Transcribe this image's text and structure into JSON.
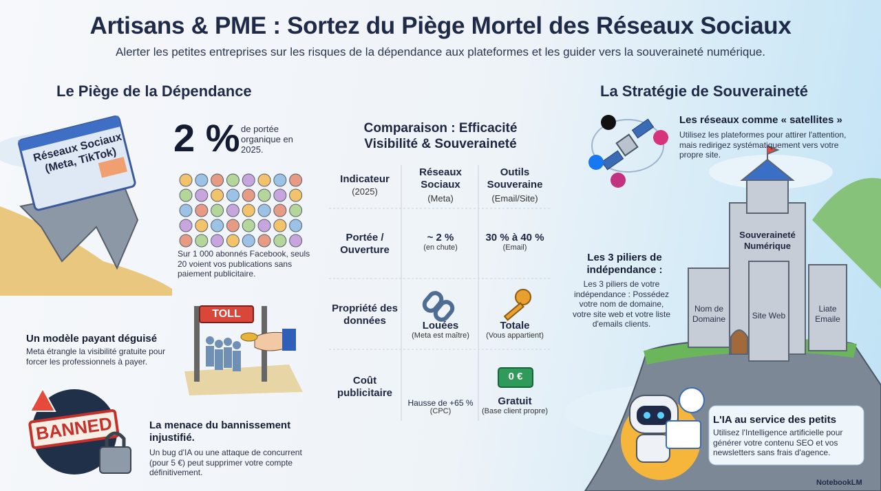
{
  "header": {
    "title": "Artisans & PME : Sortez du Piège Mortel des Réseaux Sociaux",
    "subtitle": "Alerter les petites entreprises sur les risques de la dépendance aux plateformes et les guider vers la souveraineté numérique."
  },
  "left": {
    "heading": "Le Piège de la Dépendance",
    "illustration_label": "Réseaux Sociaux (Meta, TikTok)",
    "stat": {
      "value": "2 %",
      "label": "de portée organique en 2025.",
      "caption": "Sur 1 000 abonnés Facebook, seuls 20 voient vos publications sans paiement publicitaire."
    },
    "toll_sign": "TOLL",
    "paid_model": {
      "title": "Un modèle payant déguisé",
      "text": "Meta étrangle la visibilité gratuite pour forcer les professionnels à payer."
    },
    "banned_stamp": "BANNED",
    "ban": {
      "title": "La menace du bannissement injustifié.",
      "text": "Un bug d'IA ou une attaque de concurrent (pour 5 €) peut supprimer votre compte définitivement."
    }
  },
  "table": {
    "title": "Comparaison : Efficacité Visibilité & Souveraineté",
    "columns": [
      {
        "label": "Indicateur",
        "sub": "(2025)"
      },
      {
        "label": "Réseaux Sociaux",
        "sub": "(Meta)"
      },
      {
        "label": "Outils Souveraine",
        "sub": "(Email/Site)"
      }
    ],
    "rows": [
      [
        {
          "label": "Portée / Ouverture"
        },
        {
          "label": "~ 2 %",
          "sub": "(en chute)"
        },
        {
          "label": "30 % à 40 %",
          "sub": "(Email)"
        }
      ],
      [
        {
          "label": "Propriété des données"
        },
        {
          "label": "Louées",
          "sub": "(Meta est maître)"
        },
        {
          "label": "Totale",
          "sub": "(Vous appartient)"
        }
      ],
      [
        {
          "label": "Coût publicitaire"
        },
        {
          "label": "Hausse de +65 %",
          "sub": "(CPC)"
        },
        {
          "label": "Gratuit",
          "sub": "(Base client propre)"
        }
      ]
    ],
    "badge": "0 €"
  },
  "right": {
    "heading": "La Stratégie de Souveraineté",
    "satellites": {
      "title": "Les réseaux comme « satellites »",
      "text": "Utilisez les plateformes pour attirer l'attention, mais redirigez systématiquement vers votre propre site."
    },
    "castle": {
      "label": "Souveraineté Numérique",
      "towers": [
        "Nom de Domaine",
        "Site Web",
        "Liate Emaile"
      ]
    },
    "pillars": {
      "title": "Les 3 piliers de indépendance :",
      "text": "Les 3 piliers de votre indépendance : Possédez votre nom de domaine, votre site web et votre liste d'emails clients."
    },
    "ai": {
      "title": "L'IA au service des petits",
      "text": "Utilisez l'Intelligence artificielle pour générer votre contenu SEO et vos newsletters sans frais d'agence."
    }
  },
  "footer": {
    "brand": "NotebookLM"
  }
}
